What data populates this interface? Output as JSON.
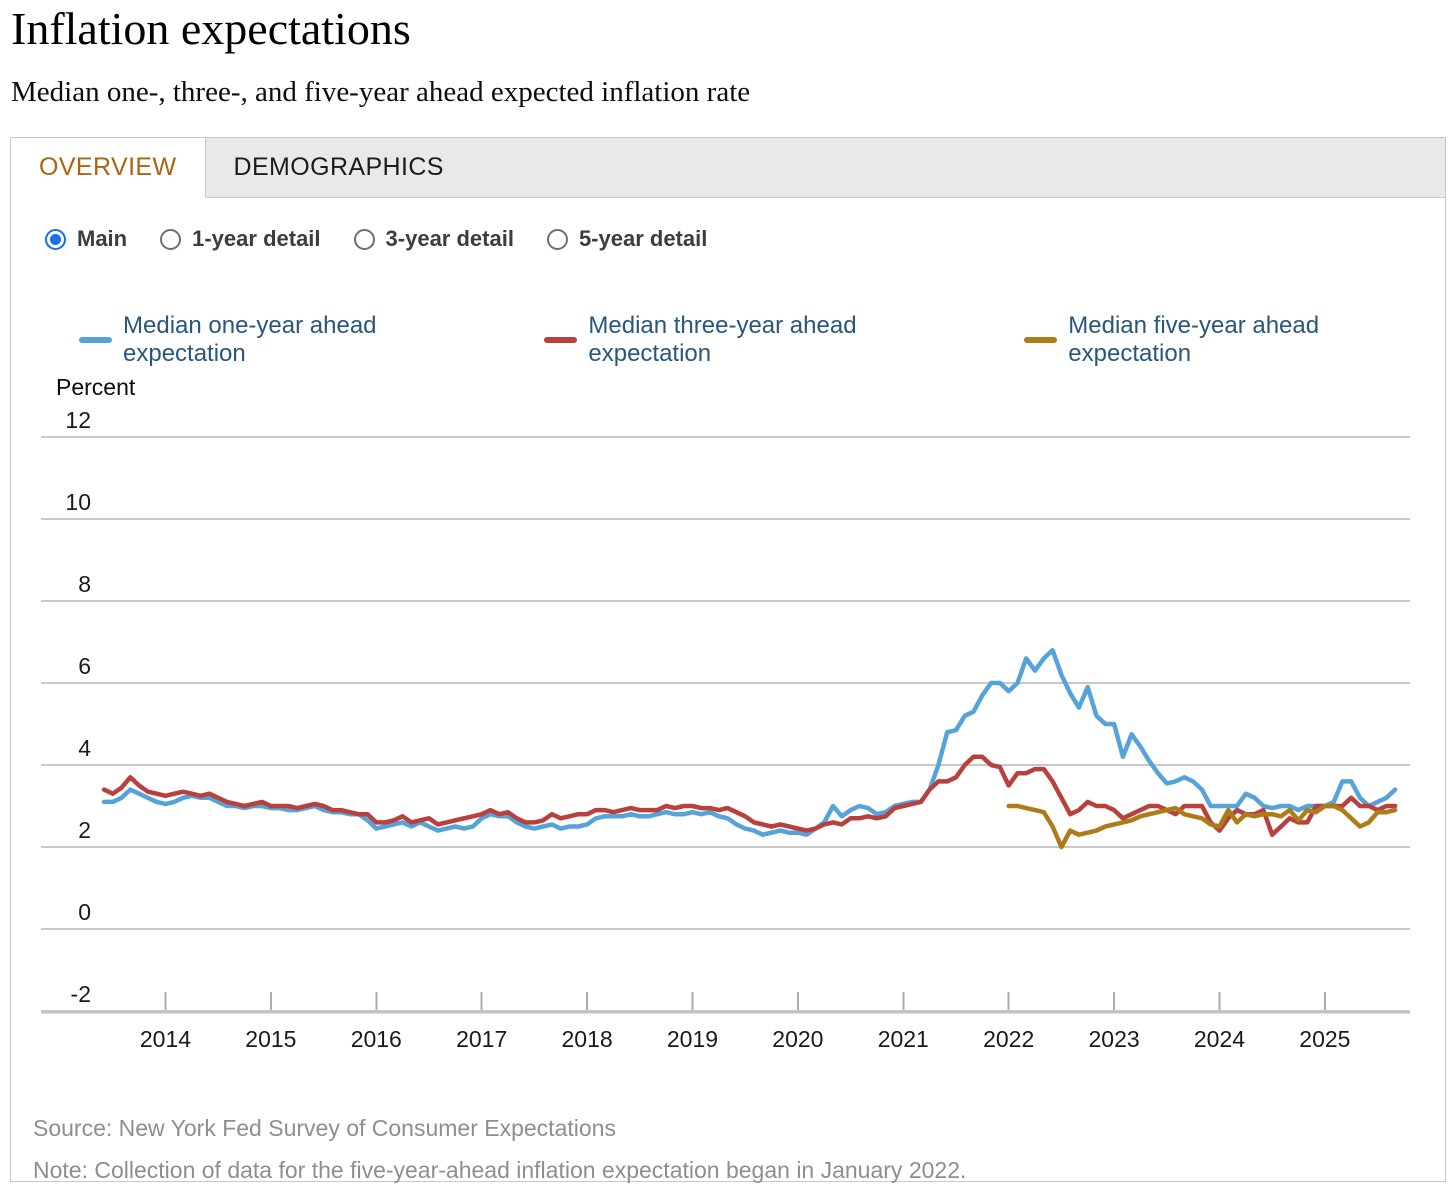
{
  "page": {
    "title": "Inflation expectations",
    "subtitle": "Median one-, three-, and five-year ahead expected inflation rate"
  },
  "tabs": [
    {
      "label": "OVERVIEW",
      "active": true
    },
    {
      "label": "DEMOGRAPHICS",
      "active": false
    }
  ],
  "view_options": [
    {
      "label": "Main",
      "selected": true
    },
    {
      "label": "1-year detail",
      "selected": false
    },
    {
      "label": "3-year detail",
      "selected": false
    },
    {
      "label": "5-year detail",
      "selected": false
    }
  ],
  "footer": {
    "source": "Source: New York Fed Survey of Consumer Expectations",
    "note": "Note: Collection of data for the five-year-ahead inflation expectation began in January 2022."
  },
  "colors": {
    "active_tab_text": "#a9660f",
    "radio_selected": "#1a6ee8",
    "legend_text": "#29567c",
    "gridline": "#c8c8c8",
    "axis_line": "#c2c2c2"
  },
  "chart_data": {
    "type": "line",
    "ylabel": "Percent",
    "y_ticks": [
      12,
      10,
      8,
      6,
      4,
      2,
      0,
      -2
    ],
    "ylim": [
      -2.8,
      12.9
    ],
    "x_year_ticks": [
      2014,
      2015,
      2016,
      2017,
      2018,
      2019,
      2020,
      2021,
      2022,
      2023,
      2024,
      2025
    ],
    "frequency": "monthly",
    "grid": true,
    "legend_position": "top",
    "series": [
      {
        "name": "Median one-year ahead expectation",
        "color": "#56a3da",
        "start": "2013-06",
        "values": [
          3.1,
          3.1,
          3.2,
          3.4,
          3.3,
          3.2,
          3.1,
          3.05,
          3.1,
          3.2,
          3.25,
          3.2,
          3.2,
          3.1,
          3.0,
          3.0,
          2.95,
          3.0,
          3.0,
          2.95,
          2.95,
          2.9,
          2.9,
          2.95,
          3.0,
          2.9,
          2.85,
          2.85,
          2.8,
          2.8,
          2.65,
          2.45,
          2.5,
          2.55,
          2.6,
          2.5,
          2.6,
          2.5,
          2.4,
          2.45,
          2.5,
          2.45,
          2.5,
          2.7,
          2.8,
          2.75,
          2.75,
          2.6,
          2.5,
          2.45,
          2.5,
          2.55,
          2.45,
          2.5,
          2.5,
          2.55,
          2.7,
          2.75,
          2.75,
          2.75,
          2.8,
          2.75,
          2.75,
          2.8,
          2.85,
          2.8,
          2.8,
          2.85,
          2.8,
          2.85,
          2.75,
          2.7,
          2.55,
          2.45,
          2.4,
          2.3,
          2.35,
          2.4,
          2.35,
          2.35,
          2.3,
          2.45,
          2.6,
          3.0,
          2.75,
          2.9,
          3.0,
          2.95,
          2.8,
          2.85,
          3.0,
          3.05,
          3.1,
          3.1,
          3.4,
          4.0,
          4.8,
          4.85,
          5.2,
          5.3,
          5.7,
          6.0,
          6.0,
          5.8,
          6.0,
          6.6,
          6.3,
          6.6,
          6.8,
          6.2,
          5.75,
          5.4,
          5.9,
          5.2,
          5.0,
          5.0,
          4.2,
          4.75,
          4.45,
          4.1,
          3.8,
          3.55,
          3.6,
          3.7,
          3.6,
          3.4,
          3.0,
          3.0,
          3.0,
          3.0,
          3.3,
          3.2,
          3.0,
          2.95,
          3.0,
          3.0,
          2.9,
          3.0,
          3.0,
          3.0,
          3.1,
          3.6,
          3.6,
          3.2,
          3.0,
          3.1,
          3.2,
          3.4
        ]
      },
      {
        "name": "Median three-year ahead expectation",
        "color": "#b8413d",
        "start": "2013-06",
        "values": [
          3.4,
          3.3,
          3.45,
          3.7,
          3.5,
          3.35,
          3.3,
          3.25,
          3.3,
          3.35,
          3.3,
          3.25,
          3.3,
          3.2,
          3.1,
          3.05,
          3.0,
          3.05,
          3.1,
          3.0,
          3.0,
          3.0,
          2.95,
          3.0,
          3.05,
          3.0,
          2.9,
          2.9,
          2.85,
          2.8,
          2.8,
          2.6,
          2.6,
          2.65,
          2.75,
          2.6,
          2.65,
          2.7,
          2.55,
          2.6,
          2.65,
          2.7,
          2.75,
          2.8,
          2.9,
          2.8,
          2.85,
          2.7,
          2.6,
          2.6,
          2.65,
          2.8,
          2.7,
          2.75,
          2.8,
          2.8,
          2.9,
          2.9,
          2.85,
          2.9,
          2.95,
          2.9,
          2.9,
          2.9,
          3.0,
          2.95,
          3.0,
          3.0,
          2.95,
          2.95,
          2.9,
          2.95,
          2.85,
          2.75,
          2.6,
          2.55,
          2.5,
          2.55,
          2.5,
          2.45,
          2.4,
          2.45,
          2.55,
          2.6,
          2.55,
          2.7,
          2.7,
          2.75,
          2.7,
          2.75,
          2.95,
          3.0,
          3.05,
          3.1,
          3.4,
          3.6,
          3.6,
          3.7,
          4.0,
          4.2,
          4.2,
          4.0,
          3.95,
          3.5,
          3.8,
          3.8,
          3.9,
          3.9,
          3.6,
          3.2,
          2.8,
          2.9,
          3.1,
          3.0,
          3.0,
          2.9,
          2.7,
          2.8,
          2.9,
          3.0,
          3.0,
          2.9,
          2.8,
          3.0,
          3.0,
          3.0,
          2.6,
          2.4,
          2.7,
          2.9,
          2.8,
          2.8,
          2.9,
          2.3,
          2.5,
          2.7,
          2.6,
          2.6,
          3.0,
          3.0,
          3.0,
          3.0,
          3.2,
          3.0,
          3.0,
          2.9,
          3.0,
          3.0
        ]
      },
      {
        "name": "Median five-year ahead expectation",
        "color": "#ae7b19",
        "start": "2022-01",
        "values": [
          3.0,
          3.0,
          2.95,
          2.9,
          2.85,
          2.5,
          2.0,
          2.4,
          2.3,
          2.35,
          2.4,
          2.5,
          2.55,
          2.6,
          2.65,
          2.75,
          2.8,
          2.85,
          2.9,
          2.95,
          2.8,
          2.75,
          2.7,
          2.55,
          2.5,
          2.9,
          2.6,
          2.8,
          2.75,
          2.8,
          2.8,
          2.75,
          2.9,
          2.65,
          2.9,
          2.85,
          3.0,
          3.0,
          2.9,
          2.7,
          2.5,
          2.6,
          2.85,
          2.85,
          2.9
        ]
      }
    ]
  }
}
